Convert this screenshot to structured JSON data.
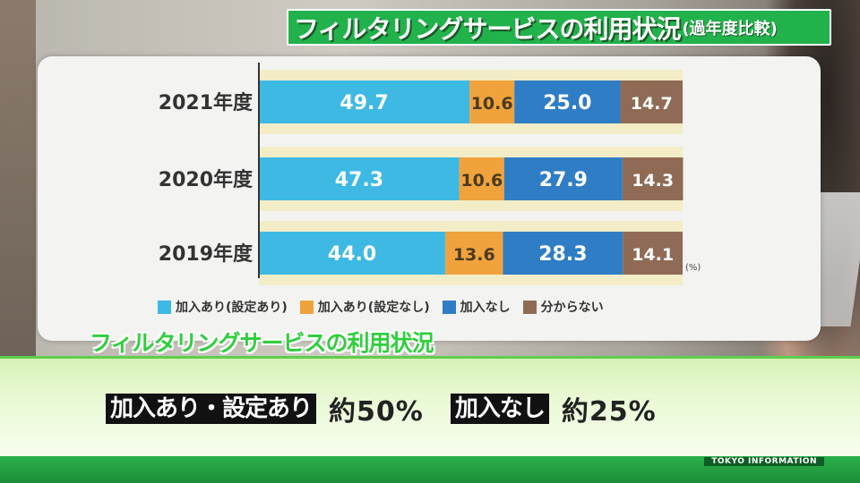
{
  "title": {
    "main": "フィルタリングサービスの利用状況",
    "sub": "(過年度比較)"
  },
  "chart_data": {
    "type": "bar",
    "orientation": "horizontal-stacked",
    "categories": [
      "2021年度",
      "2020年度",
      "2019年度"
    ],
    "series": [
      {
        "name": "加入あり(設定あり)",
        "color": "#3db9e3",
        "values": [
          49.7,
          47.3,
          44.0
        ]
      },
      {
        "name": "加入あり(設定なし)",
        "color": "#f0a23c",
        "values": [
          10.6,
          10.6,
          13.6
        ]
      },
      {
        "name": "加入なし",
        "color": "#2f7dc4",
        "values": [
          25.0,
          27.9,
          28.3
        ]
      },
      {
        "name": "分からない",
        "color": "#8f6b55",
        "values": [
          14.7,
          14.3,
          14.1
        ]
      }
    ],
    "value_labels": [
      [
        "49.7",
        "10.6",
        "25.0",
        "14.7"
      ],
      [
        "47.3",
        "10.6",
        "27.9",
        "14.3"
      ],
      [
        "44.0",
        "13.6",
        "28.3",
        "14.1"
      ]
    ],
    "unit_label": "(%)",
    "xlim": [
      0,
      100
    ],
    "band_color": "#f2edc7",
    "legend_position": "bottom"
  },
  "subhead": "フィルタリングサービスの利用状況",
  "stats": [
    {
      "label": "加入あり・設定あり",
      "value": "約50%"
    },
    {
      "label": "加入なし",
      "value": "約25%"
    }
  ],
  "footer": "TOKYO INFORMATION"
}
